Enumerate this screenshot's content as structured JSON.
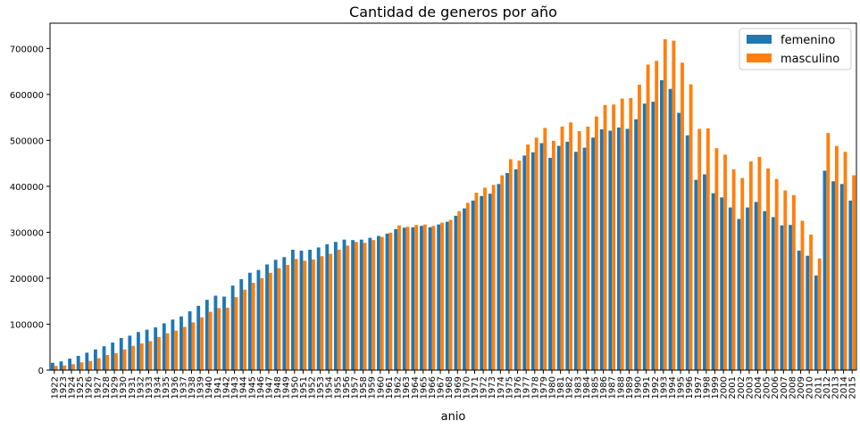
{
  "chart_data": {
    "type": "bar",
    "title": "Cantidad de generos por año",
    "xlabel": "anio",
    "ylabel": "",
    "ylim": [
      0,
      755000
    ],
    "yticks": [
      0,
      100000,
      200000,
      300000,
      400000,
      500000,
      600000,
      700000
    ],
    "grid": false,
    "legend_position": "top-right",
    "categories": [
      "1922",
      "1923",
      "1924",
      "1925",
      "1926",
      "1927",
      "1928",
      "1929",
      "1930",
      "1931",
      "1932",
      "1933",
      "1934",
      "1935",
      "1936",
      "1937",
      "1938",
      "1939",
      "1940",
      "1941",
      "1942",
      "1943",
      "1944",
      "1945",
      "1946",
      "1947",
      "1948",
      "1949",
      "1950",
      "1951",
      "1952",
      "1953",
      "1954",
      "1955",
      "1956",
      "1957",
      "1958",
      "1959",
      "1960",
      "1961",
      "1962",
      "1963",
      "1964",
      "1965",
      "1966",
      "1967",
      "1968",
      "1969",
      "1970",
      "1971",
      "1972",
      "1973",
      "1974",
      "1975",
      "1976",
      "1977",
      "1978",
      "1979",
      "1980",
      "1981",
      "1982",
      "1983",
      "1984",
      "1985",
      "1986",
      "1987",
      "1988",
      "1989",
      "1990",
      "1991",
      "1992",
      "1993",
      "1994",
      "1995",
      "1996",
      "1997",
      "1998",
      "1999",
      "2000",
      "2001",
      "2002",
      "2003",
      "2004",
      "2005",
      "2006",
      "2007",
      "2008",
      "2009",
      "2010",
      "2011",
      "2012",
      "2013",
      "2014",
      "2015"
    ],
    "series": [
      {
        "name": "femenino",
        "color": "#1f77b4",
        "values": [
          16000,
          19000,
          25000,
          31000,
          38000,
          45000,
          52000,
          60000,
          70000,
          75000,
          83000,
          88000,
          93000,
          102000,
          110000,
          117000,
          128000,
          140000,
          153000,
          162000,
          160000,
          184000,
          198000,
          212000,
          218000,
          230000,
          240000,
          246000,
          262000,
          260000,
          262000,
          267000,
          274000,
          279000,
          284000,
          283000,
          284000,
          288000,
          292000,
          297000,
          307000,
          310000,
          311000,
          314000,
          311000,
          317000,
          323000,
          336000,
          352000,
          369000,
          379000,
          384000,
          405000,
          429000,
          437000,
          467000,
          474000,
          494000,
          462000,
          488000,
          497000,
          475000,
          484000,
          506000,
          524000,
          521000,
          528000,
          525000,
          546000,
          580000,
          584000,
          631000,
          612000,
          560000,
          511000,
          414000,
          426000,
          385000,
          376000,
          354000,
          329000,
          354000,
          366000,
          346000,
          333000,
          315000,
          316000,
          260000,
          249000,
          206000,
          434000,
          411000,
          405000,
          369000
        ]
      },
      {
        "name": "masculino",
        "color": "#ff7f0e",
        "values": [
          9000,
          10000,
          13000,
          17000,
          20000,
          26000,
          33000,
          37000,
          45000,
          53000,
          58000,
          63000,
          72000,
          80000,
          86000,
          94000,
          104000,
          115000,
          127000,
          135000,
          136000,
          159000,
          175000,
          190000,
          200000,
          212000,
          222000,
          229000,
          242000,
          238000,
          241000,
          248000,
          253000,
          262000,
          271000,
          279000,
          277000,
          283000,
          290000,
          299000,
          315000,
          312000,
          316000,
          317000,
          314000,
          321000,
          327000,
          346000,
          364000,
          386000,
          397000,
          403000,
          424000,
          459000,
          456000,
          491000,
          506000,
          527000,
          499000,
          530000,
          539000,
          520000,
          530000,
          552000,
          577000,
          578000,
          591000,
          592000,
          621000,
          665000,
          673000,
          720000,
          717000,
          669000,
          622000,
          525000,
          526000,
          483000,
          469000,
          437000,
          418000,
          454000,
          464000,
          439000,
          416000,
          391000,
          381000,
          325000,
          295000,
          243000,
          516000,
          488000,
          475000,
          424000
        ]
      }
    ]
  }
}
